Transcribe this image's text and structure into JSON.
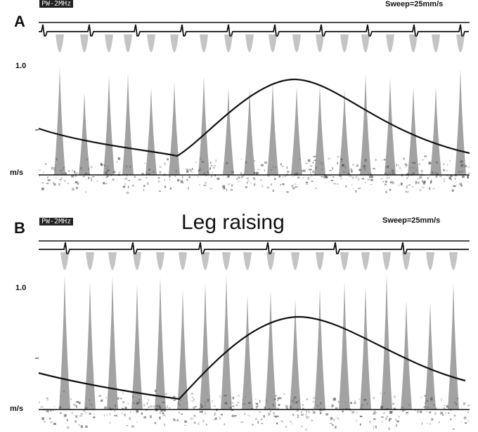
{
  "panels": [
    {
      "label": "A",
      "mode": "PW-2MHz",
      "sweep": "Sweep=25mm/s",
      "scale_label": "1.0",
      "unit_label": "m/s",
      "caption": ""
    },
    {
      "label": "B",
      "mode": "PW-2MHz",
      "sweep": "Sweep=25mm/s",
      "scale_label": "1.0",
      "unit_label": "m/s",
      "caption": "Leg raising"
    }
  ],
  "colors": {
    "trace": "#111111",
    "background": "#ffffff",
    "speckle": "#555555"
  }
}
